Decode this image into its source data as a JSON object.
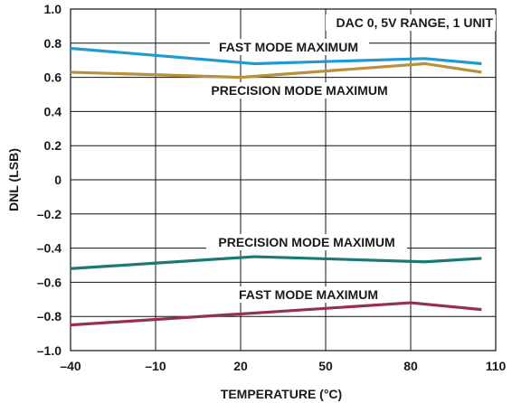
{
  "chart_data": {
    "type": "line",
    "xlabel": "TEMPERATURE (°C)",
    "ylabel": "DNL (LSB)",
    "xlim": [
      -40,
      110
    ],
    "ylim": [
      -1.0,
      1.0
    ],
    "x_ticks": [
      -40,
      -10,
      20,
      50,
      80,
      110
    ],
    "x_tick_labels": [
      "–40",
      "–10",
      "20",
      "50",
      "80",
      "110"
    ],
    "y_ticks": [
      1.0,
      0.8,
      0.6,
      0.4,
      0.2,
      0,
      -0.2,
      -0.4,
      -0.6,
      -0.8,
      -1.0
    ],
    "y_tick_labels": [
      "1.0",
      "0.8",
      "0.6",
      "0.4",
      "0.2",
      "0",
      "–0.2",
      "–0.4",
      "–0.6",
      "–0.8",
      "–1.0"
    ],
    "grid": true,
    "annotation_top_right": "DAC 0, 5V RANGE, 1 UNIT",
    "series": [
      {
        "name": "FAST MODE MAXIMUM",
        "color": "#1f9bd1",
        "x": [
          -40,
          25,
          85,
          105
        ],
        "y": [
          0.77,
          0.68,
          0.71,
          0.68
        ]
      },
      {
        "name": "PRECISION MODE MAXIMUM",
        "color": "#b8913a",
        "x": [
          -40,
          20,
          85,
          105
        ],
        "y": [
          0.63,
          0.6,
          0.68,
          0.63
        ]
      },
      {
        "name": "PRECISION MODE MAXIMUM",
        "color": "#1a7a72",
        "x": [
          -40,
          25,
          85,
          105
        ],
        "y": [
          -0.52,
          -0.45,
          -0.48,
          -0.46
        ]
      },
      {
        "name": "FAST MODE MAXIMUM",
        "color": "#962f55",
        "x": [
          -40,
          25,
          80,
          105
        ],
        "y": [
          -0.85,
          -0.78,
          -0.72,
          -0.76
        ]
      }
    ]
  }
}
